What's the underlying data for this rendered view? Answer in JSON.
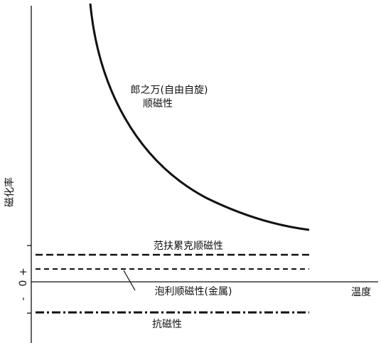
{
  "y_axis": {
    "label": "磁化率",
    "plus": "+",
    "zero": "0",
    "minus": "-"
  },
  "x_axis": {
    "label": "温度"
  },
  "curves": [
    {
      "label_lines": [
        "郎之万(自由自旋)",
        "顺磁性"
      ]
    },
    {
      "label_lines": [
        "范扶累克顺磁性"
      ]
    },
    {
      "label_lines": [
        "泡利顺磁性(金属)"
      ]
    },
    {
      "label_lines": [
        "抗磁性"
      ]
    }
  ]
}
